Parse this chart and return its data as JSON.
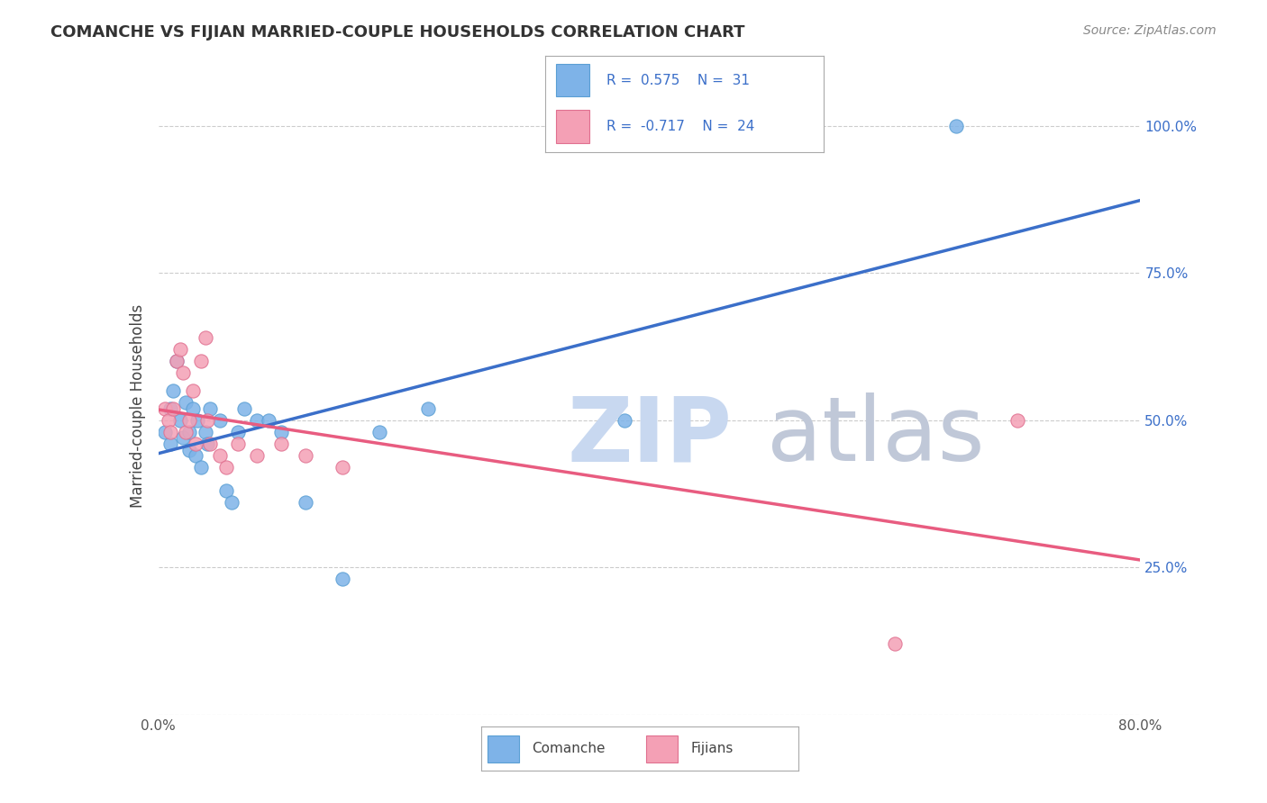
{
  "title": "COMANCHE VS FIJIAN MARRIED-COUPLE HOUSEHOLDS CORRELATION CHART",
  "source": "Source: ZipAtlas.com",
  "xlabel": "",
  "ylabel": "Married-couple Households",
  "xlim": [
    0.0,
    0.8
  ],
  "ylim": [
    0.0,
    1.05
  ],
  "ytick_labels": [
    "",
    "25.0%",
    "50.0%",
    "75.0%",
    "100.0%"
  ],
  "ytick_vals": [
    0.0,
    0.25,
    0.5,
    0.75,
    1.0
  ],
  "xtick_labels": [
    "0.0%",
    "",
    "",
    "",
    "",
    "",
    "",
    "",
    "80.0%"
  ],
  "xtick_vals": [
    0.0,
    0.1,
    0.2,
    0.3,
    0.4,
    0.5,
    0.6,
    0.7,
    0.8
  ],
  "comanche_color": "#7EB3E8",
  "comanche_edge_color": "#5A9FD4",
  "fijian_color": "#F4A0B5",
  "fijian_edge_color": "#E07090",
  "comanche_line_color": "#3B6FC9",
  "fijian_line_color": "#E85C80",
  "R_comanche": 0.575,
  "N_comanche": 31,
  "R_fijian": -0.717,
  "N_fijian": 24,
  "legend_R_color": "#3B6FC9",
  "legend_N_color": "#3B6FC9",
  "watermark": "ZIPatlas",
  "watermark_zip_color": "#C8D8F0",
  "watermark_atlas_color": "#C0C8D8",
  "comanche_x": [
    0.005,
    0.01,
    0.01,
    0.012,
    0.015,
    0.018,
    0.02,
    0.022,
    0.025,
    0.025,
    0.028,
    0.03,
    0.032,
    0.035,
    0.038,
    0.04,
    0.042,
    0.05,
    0.055,
    0.06,
    0.065,
    0.07,
    0.08,
    0.09,
    0.1,
    0.12,
    0.15,
    0.18,
    0.22,
    0.38,
    0.65
  ],
  "comanche_y": [
    0.48,
    0.52,
    0.46,
    0.55,
    0.6,
    0.5,
    0.47,
    0.53,
    0.48,
    0.45,
    0.52,
    0.44,
    0.5,
    0.42,
    0.48,
    0.46,
    0.52,
    0.5,
    0.38,
    0.36,
    0.48,
    0.52,
    0.5,
    0.5,
    0.48,
    0.36,
    0.23,
    0.48,
    0.52,
    0.5,
    1.0
  ],
  "fijian_x": [
    0.005,
    0.008,
    0.01,
    0.012,
    0.015,
    0.018,
    0.02,
    0.022,
    0.025,
    0.028,
    0.03,
    0.035,
    0.038,
    0.04,
    0.042,
    0.05,
    0.055,
    0.065,
    0.08,
    0.1,
    0.12,
    0.15,
    0.6,
    0.7
  ],
  "fijian_y": [
    0.52,
    0.5,
    0.48,
    0.52,
    0.6,
    0.62,
    0.58,
    0.48,
    0.5,
    0.55,
    0.46,
    0.6,
    0.64,
    0.5,
    0.46,
    0.44,
    0.42,
    0.46,
    0.44,
    0.46,
    0.44,
    0.42,
    0.12,
    0.5
  ],
  "marker_size": 120,
  "bg_color": "#FFFFFF",
  "grid_color": "#CCCCCC"
}
